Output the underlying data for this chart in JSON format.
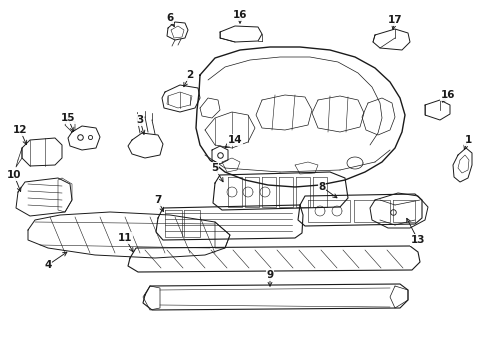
{
  "bg_color": "#ffffff",
  "line_color": "#1a1a1a",
  "fig_width": 4.89,
  "fig_height": 3.6,
  "dpi": 100,
  "label_fontsize": 7.5,
  "lw_main": 0.8,
  "lw_detail": 0.5
}
